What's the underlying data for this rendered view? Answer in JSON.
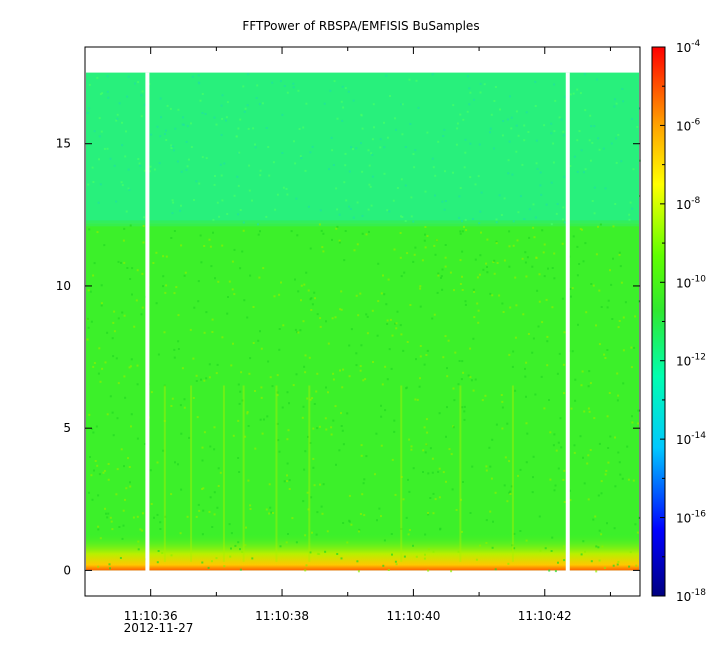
{
  "chart_data": {
    "type": "heatmap",
    "title": "FFTPower of RBSPA/EMFISIS  BuSamples",
    "xlabel": "",
    "ylabel": "",
    "x_axis": {
      "type": "time",
      "tick_labels": [
        "11:10:36",
        "11:10:38",
        "11:10:40",
        "11:10:42"
      ],
      "tick_values_s": [
        36,
        38,
        40,
        42
      ],
      "minor_ticks_s": [
        35,
        37,
        39,
        41,
        43
      ],
      "date_label": "2012-11-27",
      "range_s": [
        35.0,
        43.45
      ]
    },
    "y_axis": {
      "tick_values": [
        0,
        5,
        10,
        15
      ],
      "tick_labels": [
        "0",
        "5",
        "10",
        "15"
      ],
      "range": [
        -0.9,
        18.4
      ]
    },
    "colorbar": {
      "scale": "log",
      "range": [
        1e-18,
        0.0001
      ],
      "ticks": [
        {
          "base": "10",
          "exp": "-4"
        },
        {
          "base": "10",
          "exp": "-6"
        },
        {
          "base": "10",
          "exp": "-8"
        },
        {
          "base": "10",
          "exp": "-10"
        },
        {
          "base": "10",
          "exp": "-12"
        },
        {
          "base": "10",
          "exp": "-14"
        },
        {
          "base": "10",
          "exp": "-16"
        },
        {
          "base": "10",
          "exp": "-18"
        }
      ],
      "colormap": [
        "#000080",
        "#0000ff",
        "#00c8ff",
        "#00ffb0",
        "#30e830",
        "#60ff00",
        "#ffff00",
        "#ffa000",
        "#ff0000"
      ]
    },
    "data_extent": {
      "y_min": 0.0,
      "y_max": 17.5,
      "band_boundary": 12.2,
      "upper_band_log_power": -12.3,
      "lower_band_log_power": -10.5,
      "near_zero_log_power": -8.0
    },
    "data_gaps_s": [
      35.95,
      42.35
    ],
    "grid": false,
    "legend": "colorbar-right"
  }
}
